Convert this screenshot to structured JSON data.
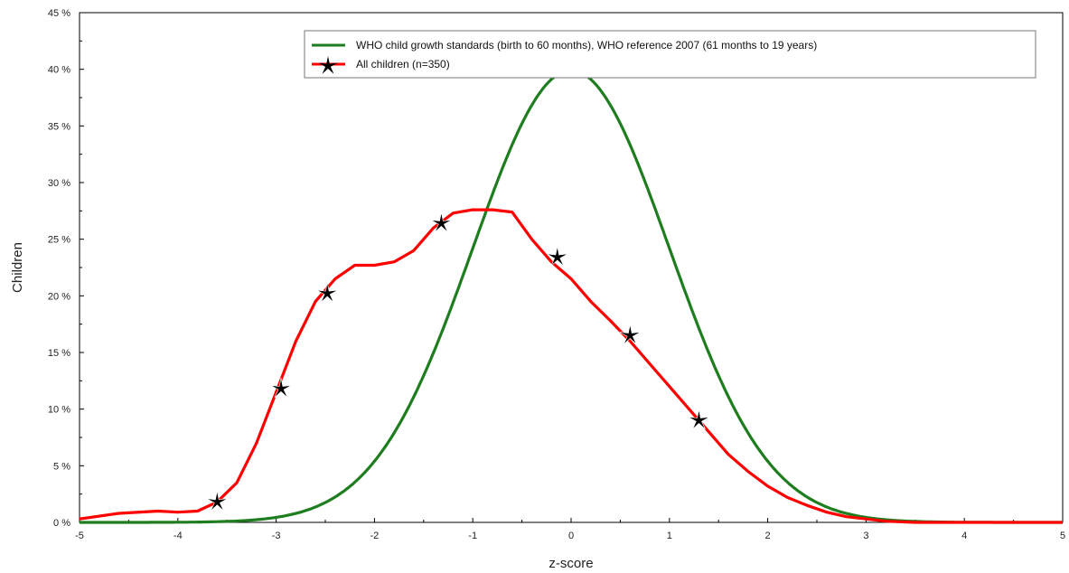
{
  "chart_data": {
    "type": "line",
    "title": "",
    "xlabel": "z-score",
    "ylabel": "Children",
    "xlim": [
      -5,
      5
    ],
    "ylim": [
      0,
      45
    ],
    "x_ticks": [
      -5,
      -4,
      -3,
      -2,
      -1,
      0,
      1,
      2,
      3,
      4,
      5
    ],
    "y_ticks": [
      0,
      5,
      10,
      15,
      20,
      25,
      30,
      35,
      40,
      45
    ],
    "y_tick_suffix": " %",
    "grid": false,
    "legend_position": "top-right",
    "series": [
      {
        "name": "WHO child growth standards (birth to 60 months), WHO reference 2007 (61 months to 19 years)",
        "color": "#1e7d1e",
        "kind": "normal-curve",
        "mean": 0,
        "sd": 1,
        "peak": 39.9,
        "markers": false
      },
      {
        "name": "All children (n=350)",
        "color": "#ff0000",
        "kind": "line",
        "x": [
          -5.0,
          -4.6,
          -4.2,
          -4.0,
          -3.8,
          -3.6,
          -3.4,
          -3.2,
          -3.0,
          -2.8,
          -2.6,
          -2.4,
          -2.2,
          -2.0,
          -1.8,
          -1.6,
          -1.4,
          -1.2,
          -1.0,
          -0.8,
          -0.6,
          -0.4,
          -0.2,
          0.0,
          0.2,
          0.4,
          0.6,
          0.8,
          1.0,
          1.2,
          1.4,
          1.6,
          1.8,
          2.0,
          2.2,
          2.4,
          2.6,
          2.8,
          3.0,
          3.2,
          3.5,
          4.0,
          5.0
        ],
        "y": [
          0.3,
          0.8,
          1.0,
          0.9,
          1.0,
          1.8,
          3.5,
          7.0,
          11.5,
          16.0,
          19.5,
          21.5,
          22.7,
          22.7,
          23.0,
          24.0,
          26.0,
          27.3,
          27.6,
          27.6,
          27.4,
          25.0,
          23.0,
          21.5,
          19.5,
          17.8,
          16.0,
          14.0,
          12.0,
          10.0,
          8.0,
          6.0,
          4.5,
          3.2,
          2.2,
          1.5,
          0.9,
          0.5,
          0.3,
          0.1,
          0.0,
          0.0,
          0.0
        ],
        "marker_symbol": "star",
        "marker_color": "#000000",
        "markers_x": [
          -3.6,
          -2.95,
          -2.48,
          -1.32,
          -0.14,
          0.6,
          1.3
        ],
        "markers_y": [
          1.8,
          11.8,
          20.2,
          26.4,
          23.4,
          16.5,
          9.0
        ]
      }
    ]
  }
}
